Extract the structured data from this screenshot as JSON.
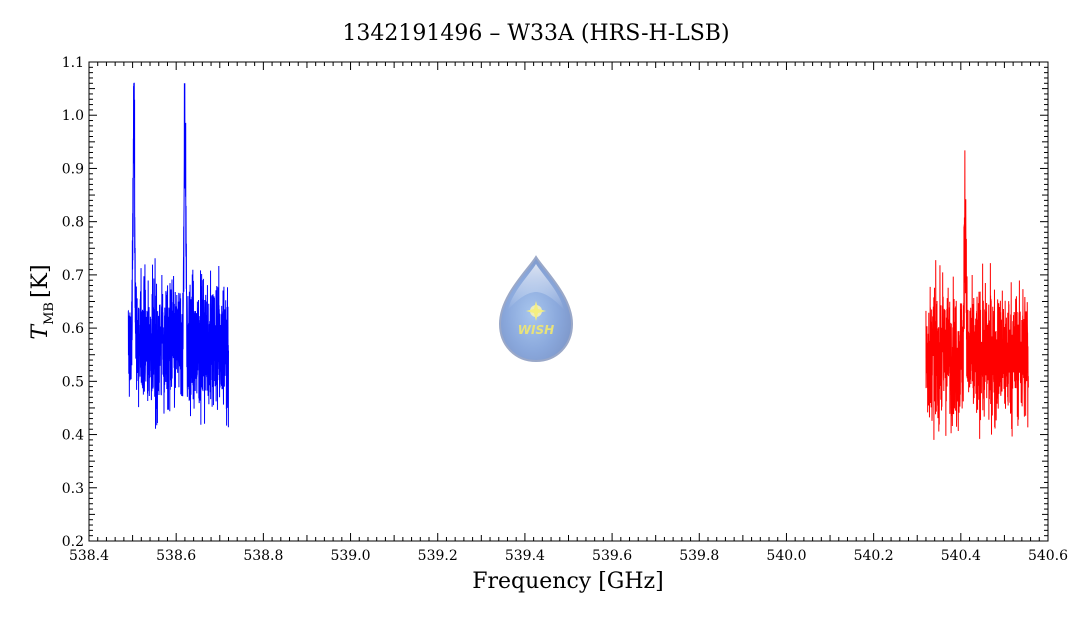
{
  "chart_data": {
    "type": "line",
    "title": "1342191496 – W33A (HRS-H-LSB)",
    "xlabel": "Frequency [GHz]",
    "ylabel": {
      "main": "T",
      "subscript": "MB",
      "unit": "[K]"
    },
    "xlim": [
      538.4,
      540.6
    ],
    "ylim": [
      0.2,
      1.1
    ],
    "x_ticks": [
      "538.4",
      "538.6",
      "538.8",
      "539.0",
      "539.2",
      "539.4",
      "539.6",
      "539.8",
      "540.0",
      "540.2",
      "540.4",
      "540.6"
    ],
    "y_ticks": [
      "0.2",
      "0.3",
      "0.4",
      "0.5",
      "0.6",
      "0.7",
      "0.8",
      "0.9",
      "1.0",
      "1.1"
    ],
    "grid": false,
    "series": [
      {
        "color": "#0000ff",
        "x_range": [
          538.49,
          538.72
        ],
        "baseline": 0.57,
        "noise": 0.11,
        "peaks": [
          {
            "x": 538.503,
            "height": 1.05
          },
          {
            "x": 538.62,
            "height": 1.05
          }
        ]
      },
      {
        "color": "#ff0000",
        "x_range": [
          540.32,
          540.555
        ],
        "baseline": 0.55,
        "noise": 0.11,
        "peaks": [
          {
            "x": 540.41,
            "height": 0.86
          }
        ]
      }
    ]
  },
  "logo": {
    "text": "WISH",
    "icon": "wish-water-drop-logo"
  }
}
